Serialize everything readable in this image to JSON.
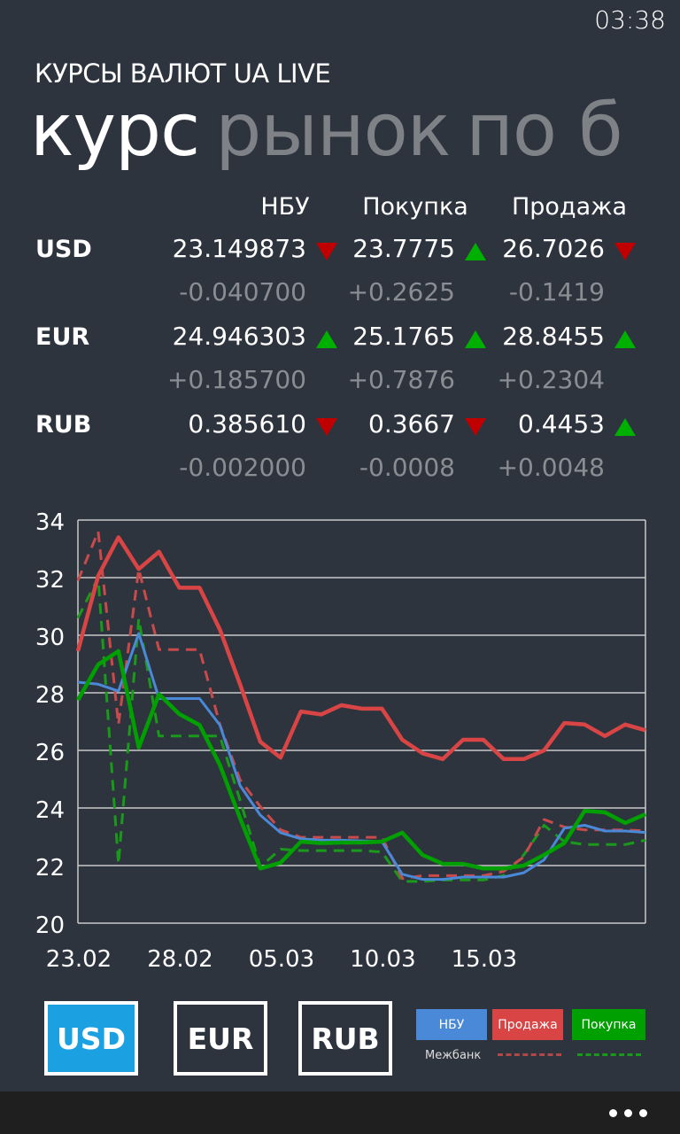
{
  "status_bar": {
    "time": "03:38"
  },
  "app_title": "КУРСЫ ВАЛЮТ UA LIVE",
  "pivot": {
    "active": "курс",
    "inactive": [
      "рынок",
      "по б"
    ]
  },
  "table": {
    "headers": [
      "НБУ",
      "Покупка",
      "Продажа"
    ],
    "rows": [
      {
        "currency": "USD",
        "values": [
          {
            "value": "23.149873",
            "trend": "down",
            "change": "-0.040700"
          },
          {
            "value": "23.7775",
            "trend": "up",
            "change": "+0.2625"
          },
          {
            "value": "26.7026",
            "trend": "down",
            "change": "-0.1419"
          }
        ]
      },
      {
        "currency": "EUR",
        "values": [
          {
            "value": "24.946303",
            "trend": "up",
            "change": "+0.185700"
          },
          {
            "value": "25.1765",
            "trend": "up",
            "change": "+0.7876"
          },
          {
            "value": "28.8455",
            "trend": "up",
            "change": "+0.2304"
          }
        ]
      },
      {
        "currency": "RUB",
        "values": [
          {
            "value": "0.385610",
            "trend": "down",
            "change": "-0.002000"
          },
          {
            "value": "0.3667",
            "trend": "down",
            "change": "-0.0008"
          },
          {
            "value": "0.4453",
            "trend": "up",
            "change": "+0.0048"
          }
        ]
      }
    ]
  },
  "colors": {
    "background": "#2e343e",
    "up": "#00b000",
    "down": "#c00000",
    "nbu": "#4a88d8",
    "sell": "#d94545",
    "buy": "#00a000",
    "selected": "#1ba1e2",
    "appbar": "#1f1f1f"
  },
  "chart_data": {
    "type": "line",
    "x": [
      "23.02",
      "24.02",
      "25.02",
      "26.02",
      "27.02",
      "28.02",
      "01.03",
      "02.03",
      "03.03",
      "04.03",
      "05.03",
      "06.03",
      "07.03",
      "08.03",
      "09.03",
      "10.03",
      "11.03",
      "12.03",
      "13.03",
      "14.03",
      "15.03",
      "16.03",
      "17.03",
      "18.03",
      "19.03",
      "20.03",
      "21.03",
      "22.03",
      "23.03"
    ],
    "xticks": [
      "23.02",
      "28.02",
      "05.03",
      "10.03",
      "15.03"
    ],
    "yticks": [
      20,
      22,
      24,
      26,
      28,
      30,
      32,
      34
    ],
    "ylim": [
      20,
      34
    ],
    "grid": true,
    "series": [
      {
        "name": "НБУ",
        "style": "solid",
        "color": "#4a88d8",
        "values": [
          28.37,
          28.3,
          28.06,
          30.06,
          27.8,
          27.8,
          27.8,
          26.88,
          24.78,
          23.75,
          23.14,
          22.93,
          22.88,
          22.88,
          22.86,
          22.83,
          21.7,
          21.52,
          21.52,
          21.6,
          21.6,
          21.6,
          21.75,
          22.2,
          23.3,
          23.4,
          23.2,
          23.2,
          23.15
        ]
      },
      {
        "name": "Продажа",
        "style": "solid",
        "color": "#d94545",
        "values": [
          29.45,
          32.06,
          33.4,
          32.3,
          32.9,
          31.65,
          31.65,
          30.2,
          28.3,
          26.3,
          25.75,
          27.35,
          27.25,
          27.57,
          27.45,
          27.45,
          26.37,
          25.9,
          25.7,
          26.37,
          26.37,
          25.7,
          25.7,
          26.0,
          26.95,
          26.9,
          26.5,
          26.9,
          26.7
        ]
      },
      {
        "name": "Покупка",
        "style": "solid",
        "color": "#00a000",
        "values": [
          27.75,
          28.98,
          29.45,
          26.1,
          27.95,
          27.26,
          26.88,
          25.5,
          23.65,
          21.9,
          22.1,
          22.83,
          22.78,
          22.8,
          22.8,
          22.83,
          23.14,
          22.37,
          22.06,
          22.06,
          21.9,
          21.9,
          22.0,
          22.37,
          22.78,
          23.9,
          23.85,
          23.48,
          23.78
        ]
      },
      {
        "name": "Межбанк Продажа",
        "style": "dashed",
        "color": "#c84a4a",
        "values": [
          31.9,
          33.6,
          26.9,
          32.3,
          29.5,
          29.5,
          29.5,
          26.9,
          24.98,
          24.05,
          23.24,
          22.98,
          22.98,
          22.98,
          22.98,
          22.98,
          21.55,
          21.65,
          21.65,
          21.65,
          21.65,
          21.8,
          22.3,
          23.6,
          23.34,
          23.24,
          23.24,
          23.24,
          23.2
        ]
      },
      {
        "name": "Межбанк Покупка",
        "style": "dashed",
        "color": "#1a9a1a",
        "values": [
          30.6,
          32.0,
          22.06,
          30.57,
          26.5,
          26.5,
          26.5,
          26.5,
          24.27,
          21.96,
          22.57,
          22.52,
          22.52,
          22.52,
          22.52,
          22.47,
          21.45,
          21.45,
          21.5,
          21.5,
          21.5,
          21.65,
          22.37,
          23.4,
          22.83,
          22.73,
          22.73,
          22.73,
          22.88
        ]
      }
    ]
  },
  "currency_buttons": [
    {
      "label": "USD",
      "selected": true
    },
    {
      "label": "EUR",
      "selected": false
    },
    {
      "label": "RUB",
      "selected": false
    }
  ],
  "legend": {
    "items": [
      "НБУ",
      "Продажа",
      "Покупка"
    ],
    "interbank_label": "Межбанк"
  },
  "appbar": {
    "more_icon": "ellipsis-icon"
  }
}
